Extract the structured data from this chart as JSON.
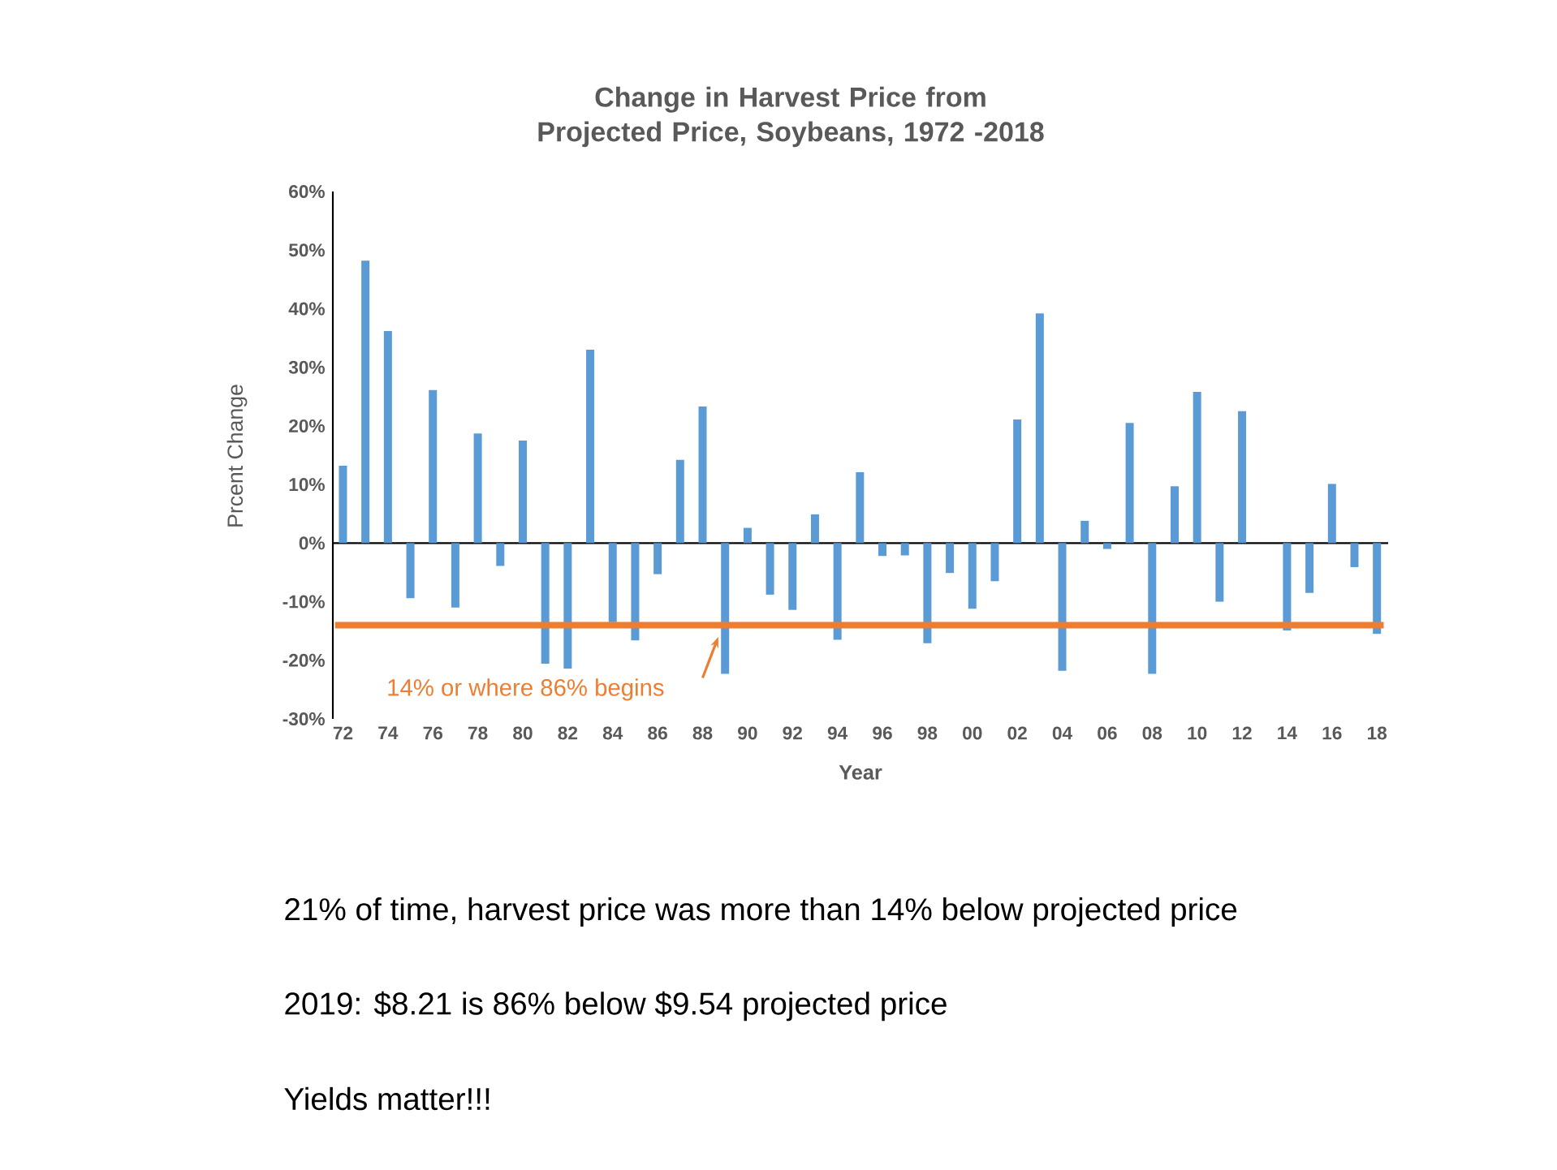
{
  "chart_data": {
    "type": "bar",
    "title": "Change in Harvest Price from Projected Price, Soybeans, 1972 -2018",
    "xlabel": "Year",
    "ylabel": "Prcent Change",
    "categories": [
      "72",
      null,
      "74",
      null,
      "76",
      null,
      "78",
      null,
      "80",
      null,
      "82",
      null,
      "84",
      null,
      "86",
      null,
      "88",
      null,
      "90",
      null,
      "92",
      null,
      "94",
      null,
      "96",
      null,
      "98",
      null,
      "00",
      null,
      "02",
      null,
      "04",
      null,
      "06",
      null,
      "08",
      null,
      "10",
      null,
      "12",
      null,
      "14",
      null,
      "16",
      null,
      "18"
    ],
    "values": [
      13.2,
      48.2,
      36.2,
      -9.4,
      26.1,
      -11.0,
      18.7,
      -3.9,
      17.5,
      -20.6,
      -21.4,
      33.0,
      -13.5,
      -16.6,
      -5.3,
      14.2,
      23.3,
      -22.3,
      2.6,
      -8.8,
      -11.4,
      4.9,
      -16.5,
      12.1,
      -2.2,
      -2.1,
      -17.1,
      -5.1,
      -11.2,
      -6.5,
      21.1,
      39.2,
      -21.8,
      3.8,
      -1.0,
      20.5,
      -22.3,
      9.7,
      25.8,
      -10.0,
      22.5,
      0,
      -14.9,
      -8.5,
      10.1,
      -4.1,
      -15.5
    ],
    "color": "#5b9bd5",
    "ylim": [
      -30,
      60
    ],
    "yticks": [
      {
        "value": -30,
        "label": "-30%"
      },
      {
        "value": -20,
        "label": "-20%"
      },
      {
        "value": -10,
        "label": "-10%"
      },
      {
        "value": 0,
        "label": "0%"
      },
      {
        "value": 10,
        "label": "10%"
      },
      {
        "value": 20,
        "label": "20%"
      },
      {
        "value": 30,
        "label": "30%"
      },
      {
        "value": 40,
        "label": "40%"
      },
      {
        "value": 50,
        "label": "50%"
      },
      {
        "value": 60,
        "label": "60%"
      }
    ],
    "ref_lines": [
      {
        "axis": "y",
        "value": -14,
        "label": "14% or where 86% begins",
        "color": "#ed7d31"
      }
    ],
    "annotations": [
      "21% of time, harvest price was more than 14% below projected price",
      "2019:  $8.21 is 86% below $9.54 projected price",
      "Yields matter!!!"
    ]
  }
}
